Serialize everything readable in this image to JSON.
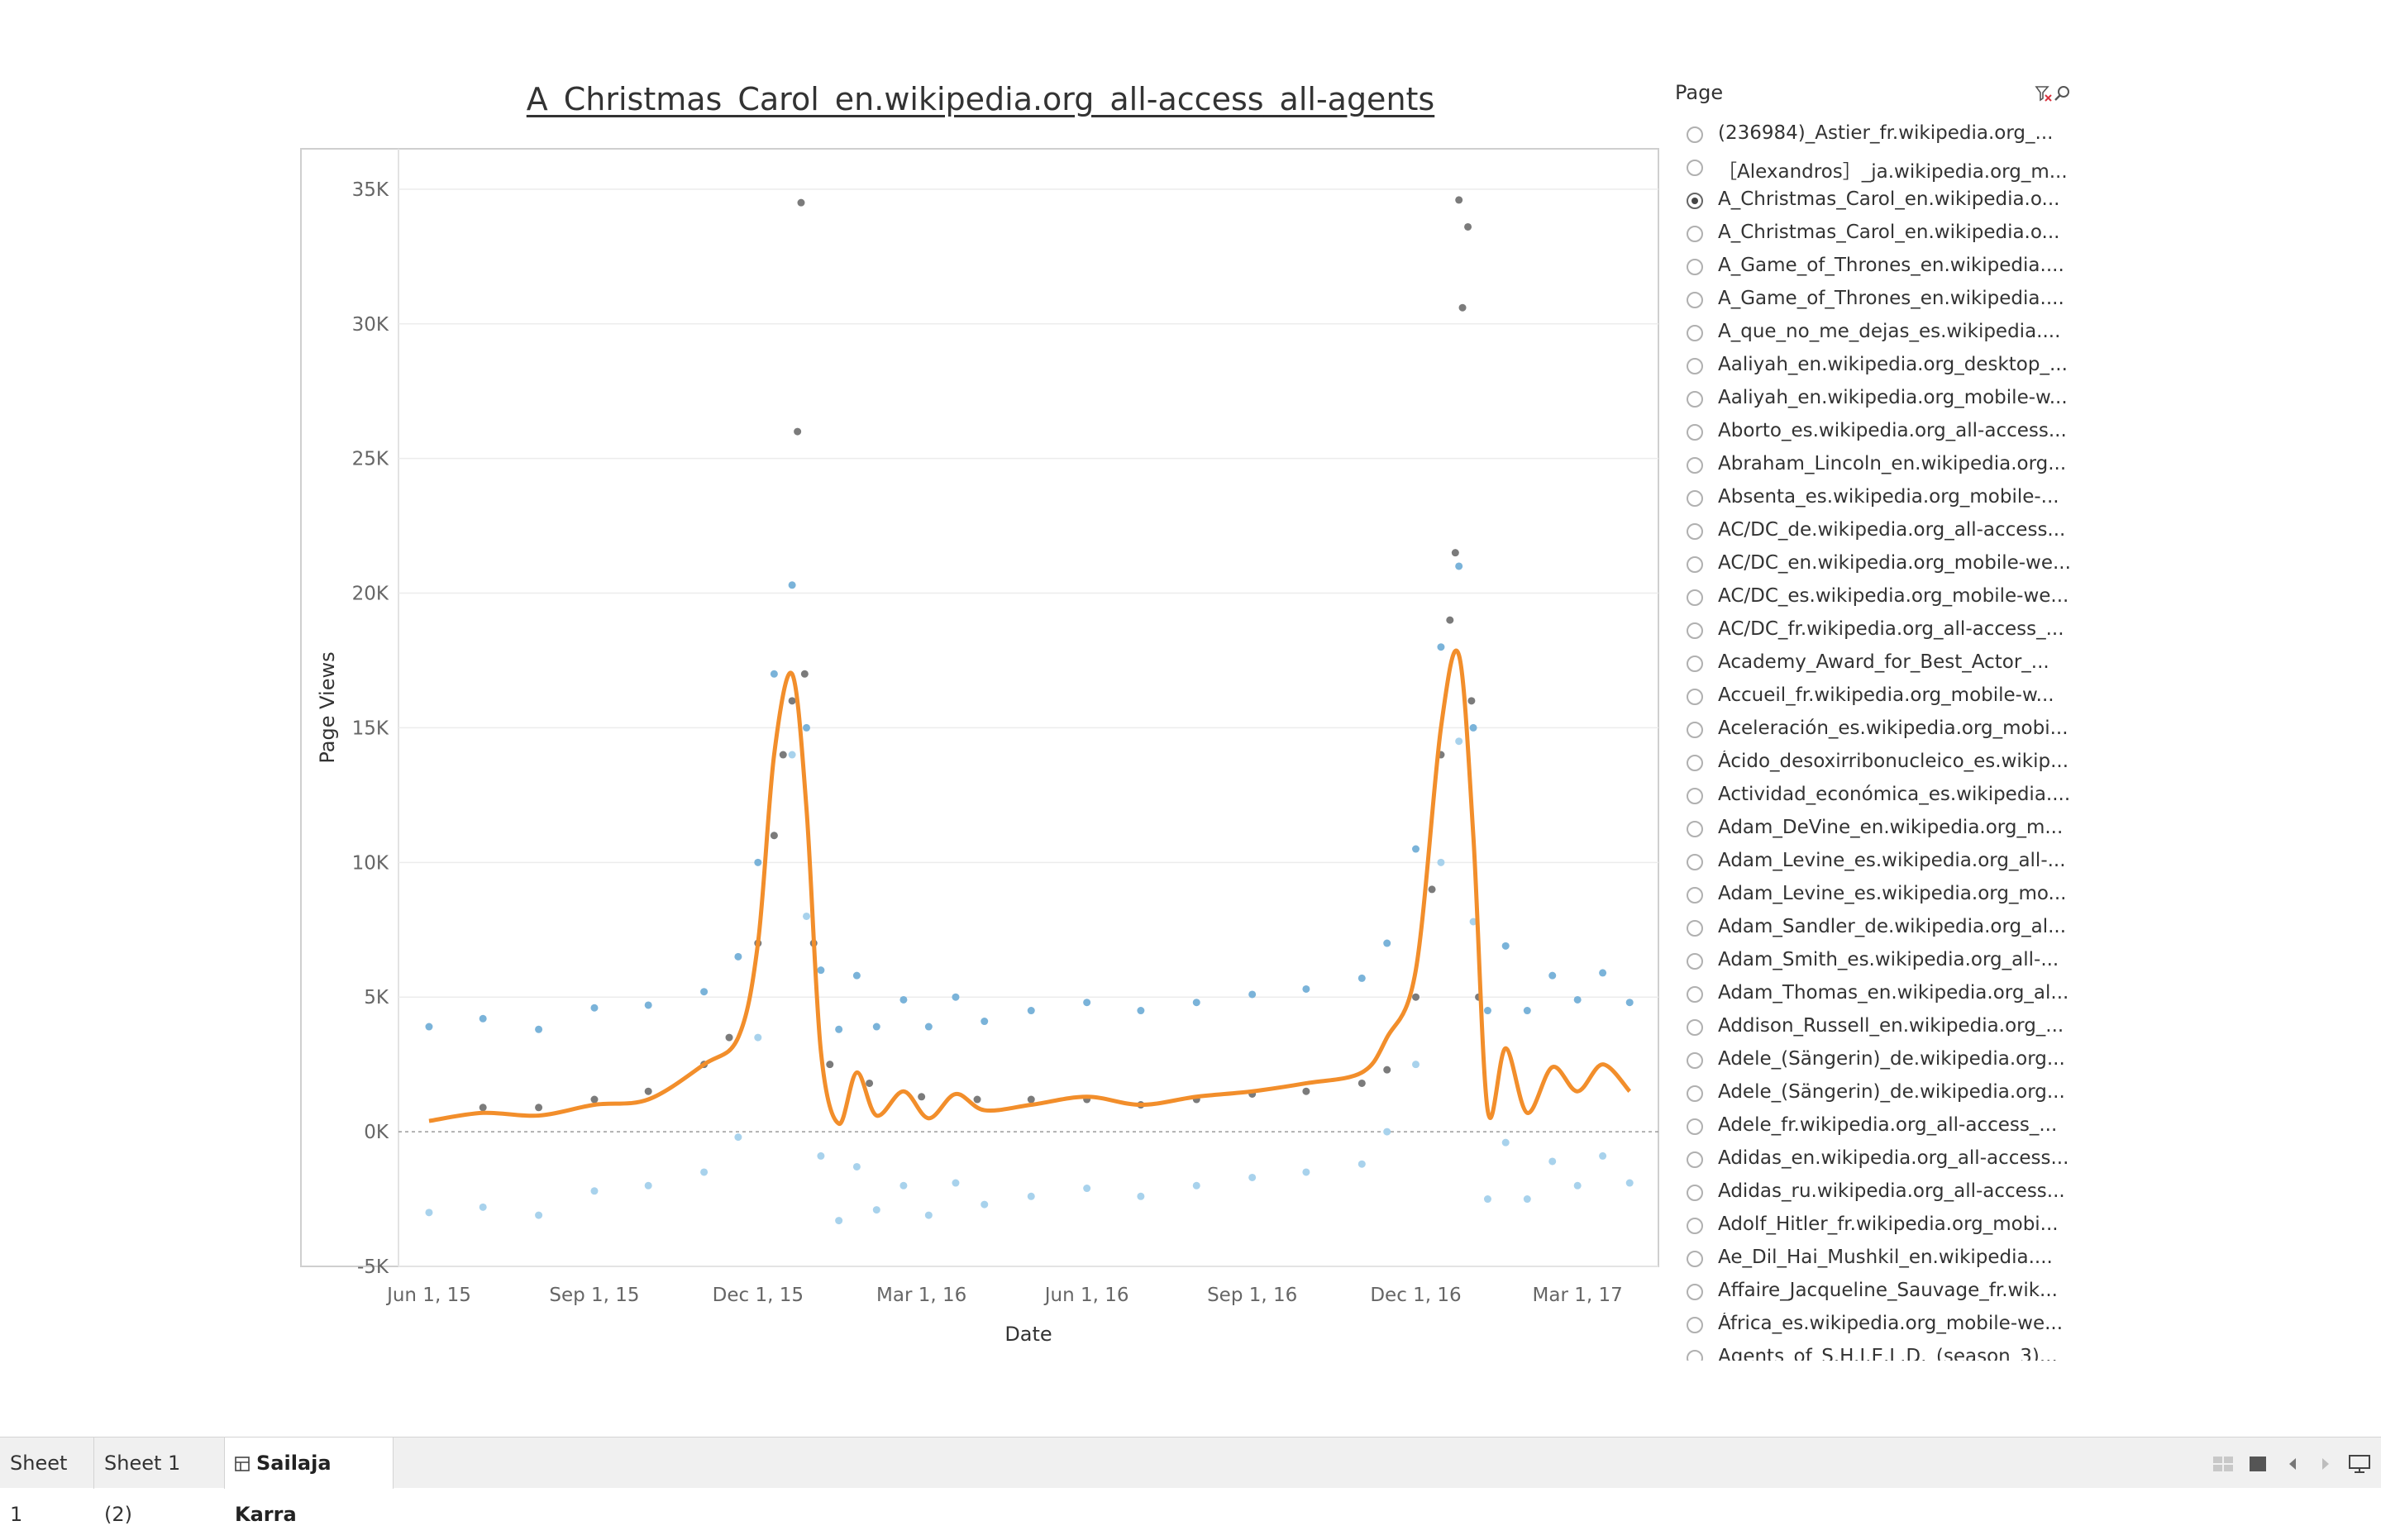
{
  "chart_data": {
    "type": "scatter",
    "title": "A_Christmas_Carol_en.wikipedia.org_all-access_all-agents",
    "xlabel": "Date",
    "ylabel": "Page Views",
    "x_tick_labels": [
      "Jun 1, 15",
      "Sep 1, 15",
      "Dec 1, 15",
      "Mar 1, 16",
      "Jun 1, 16",
      "Sep 1, 16",
      "Dec 1, 16",
      "Mar 1, 17"
    ],
    "x_tick_dates": [
      "2015-06-01",
      "2015-09-01",
      "2015-12-01",
      "2016-03-01",
      "2016-06-01",
      "2016-09-01",
      "2016-12-01",
      "2017-03-01"
    ],
    "xlim": [
      "2015-05-15",
      "2017-04-15"
    ],
    "ylim": [
      -5000,
      36500
    ],
    "y_ticks": [
      -5000,
      0,
      5000,
      10000,
      15000,
      20000,
      25000,
      30000,
      35000
    ],
    "y_tick_labels": [
      "-5K",
      "0K",
      "5K",
      "10K",
      "15K",
      "20K",
      "25K",
      "30K",
      "35K"
    ],
    "grid": true,
    "zero_reference_line": true,
    "colors": {
      "actual": "#7b7b7b",
      "forecast": "#f28e2b",
      "upper": "#7ab3d9",
      "lower": "#a8d2ec"
    },
    "series": [
      {
        "role": "actual",
        "style": "points",
        "x": [
          "2015-07-01",
          "2015-08-01",
          "2015-09-01",
          "2015-10-01",
          "2015-11-01",
          "2015-11-15",
          "2015-12-01",
          "2015-12-10",
          "2015-12-15",
          "2015-12-20",
          "2015-12-23",
          "2015-12-25",
          "2015-12-27",
          "2016-01-01",
          "2016-01-10",
          "2016-02-01",
          "2016-03-01",
          "2016-04-01",
          "2016-05-01",
          "2016-06-01",
          "2016-07-01",
          "2016-08-01",
          "2016-09-01",
          "2016-10-01",
          "2016-11-01",
          "2016-11-15",
          "2016-12-01",
          "2016-12-10",
          "2016-12-15",
          "2016-12-20",
          "2016-12-23",
          "2016-12-25",
          "2016-12-27",
          "2016-12-30",
          "2017-01-01",
          "2017-01-05"
        ],
        "y": [
          900,
          900,
          1200,
          1500,
          2500,
          3500,
          7000,
          11000,
          14000,
          16000,
          26000,
          34500,
          17000,
          7000,
          2500,
          1800,
          1300,
          1200,
          1200,
          1200,
          1000,
          1200,
          1400,
          1500,
          1800,
          2300,
          5000,
          9000,
          14000,
          19000,
          21500,
          34600,
          30600,
          33600,
          16000,
          5000
        ]
      },
      {
        "role": "forecast",
        "style": "line",
        "x": [
          "2015-06-01",
          "2015-07-01",
          "2015-08-01",
          "2015-09-01",
          "2015-10-01",
          "2015-11-01",
          "2015-11-20",
          "2015-12-01",
          "2015-12-10",
          "2015-12-20",
          "2015-12-28",
          "2016-01-05",
          "2016-01-15",
          "2016-01-25",
          "2016-02-05",
          "2016-02-20",
          "2016-03-05",
          "2016-03-20",
          "2016-04-05",
          "2016-05-01",
          "2016-06-01",
          "2016-07-01",
          "2016-08-01",
          "2016-09-01",
          "2016-10-01",
          "2016-11-01",
          "2016-11-15",
          "2016-12-01",
          "2016-12-15",
          "2016-12-25",
          "2017-01-02",
          "2017-01-10",
          "2017-01-20",
          "2017-02-01",
          "2017-02-15",
          "2017-03-01",
          "2017-03-15",
          "2017-03-30"
        ],
        "y": [
          400,
          700,
          600,
          1000,
          1200,
          2500,
          3500,
          7000,
          14000,
          17000,
          12000,
          3000,
          300,
          2200,
          600,
          1500,
          500,
          1400,
          800,
          1000,
          1300,
          1000,
          1300,
          1500,
          1800,
          2200,
          3500,
          6000,
          15000,
          17700,
          11000,
          800,
          3100,
          700,
          2400,
          1500,
          2500,
          1500
        ]
      },
      {
        "role": "upper",
        "style": "points",
        "x": [
          "2015-06-01",
          "2015-07-01",
          "2015-08-01",
          "2015-09-01",
          "2015-10-01",
          "2015-11-01",
          "2015-11-20",
          "2015-12-01",
          "2015-12-10",
          "2015-12-20",
          "2015-12-28",
          "2016-01-05",
          "2016-01-15",
          "2016-01-25",
          "2016-02-05",
          "2016-02-20",
          "2016-03-05",
          "2016-03-20",
          "2016-04-05",
          "2016-05-01",
          "2016-06-01",
          "2016-07-01",
          "2016-08-01",
          "2016-09-01",
          "2016-10-01",
          "2016-11-01",
          "2016-11-15",
          "2016-12-01",
          "2016-12-15",
          "2016-12-25",
          "2017-01-02",
          "2017-01-10",
          "2017-01-20",
          "2017-02-01",
          "2017-02-15",
          "2017-03-01",
          "2017-03-15",
          "2017-03-30"
        ],
        "y": [
          3900,
          4200,
          3800,
          4600,
          4700,
          5200,
          6500,
          10000,
          17000,
          20300,
          15000,
          6000,
          3800,
          5800,
          3900,
          4900,
          3900,
          5000,
          4100,
          4500,
          4800,
          4500,
          4800,
          5100,
          5300,
          5700,
          7000,
          10500,
          18000,
          21000,
          15000,
          4500,
          6900,
          4500,
          5800,
          4900,
          5900,
          4800
        ]
      },
      {
        "role": "lower",
        "style": "points",
        "x": [
          "2015-06-01",
          "2015-07-01",
          "2015-08-01",
          "2015-09-01",
          "2015-10-01",
          "2015-11-01",
          "2015-11-20",
          "2015-12-01",
          "2015-12-10",
          "2015-12-20",
          "2015-12-28",
          "2016-01-05",
          "2016-01-15",
          "2016-01-25",
          "2016-02-05",
          "2016-02-20",
          "2016-03-05",
          "2016-03-20",
          "2016-04-05",
          "2016-05-01",
          "2016-06-01",
          "2016-07-01",
          "2016-08-01",
          "2016-09-01",
          "2016-10-01",
          "2016-11-01",
          "2016-11-15",
          "2016-12-01",
          "2016-12-15",
          "2016-12-25",
          "2017-01-02",
          "2017-01-10",
          "2017-01-20",
          "2017-02-01",
          "2017-02-15",
          "2017-03-01",
          "2017-03-15",
          "2017-03-30"
        ],
        "y": [
          -3000,
          -2800,
          -3100,
          -2200,
          -2000,
          -1500,
          -200,
          3500,
          11000,
          14000,
          8000,
          -900,
          -3300,
          -1300,
          -2900,
          -2000,
          -3100,
          -1900,
          -2700,
          -2400,
          -2100,
          -2400,
          -2000,
          -1700,
          -1500,
          -1200,
          0,
          2500,
          10000,
          14500,
          7800,
          -2500,
          -400,
          -2500,
          -1100,
          -2000,
          -900,
          -1900
        ]
      }
    ]
  },
  "filter": {
    "title": "Page",
    "clear_icon": "clear-filter-icon",
    "search_icon": "search-icon",
    "selected_index": 2,
    "items": [
      "(236984)_Astier_fr.wikipedia.org_...",
      "［Alexandros］_ja.wikipedia.org_m...",
      "A_Christmas_Carol_en.wikipedia.o...",
      "A_Christmas_Carol_en.wikipedia.o...",
      "A_Game_of_Thrones_en.wikipedia....",
      "A_Game_of_Thrones_en.wikipedia....",
      "A_que_no_me_dejas_es.wikipedia....",
      "Aaliyah_en.wikipedia.org_desktop_...",
      "Aaliyah_en.wikipedia.org_mobile-w...",
      "Aborto_es.wikipedia.org_all-access...",
      "Abraham_Lincoln_en.wikipedia.org...",
      "Absenta_es.wikipedia.org_mobile-...",
      "AC/DC_de.wikipedia.org_all-access...",
      "AC/DC_en.wikipedia.org_mobile-we...",
      "AC/DC_es.wikipedia.org_mobile-we...",
      "AC/DC_fr.wikipedia.org_all-access_...",
      "Academy_Award_for_Best_Actor_...",
      "Accueil_fr.wikipedia.org_mobile-w...",
      "Aceleración_es.wikipedia.org_mobi...",
      "Ácido_desoxirribonucleico_es.wikip...",
      "Actividad_económica_es.wikipedia....",
      "Adam_DeVine_en.wikipedia.org_m...",
      "Adam_Levine_es.wikipedia.org_all-...",
      "Adam_Levine_es.wikipedia.org_mo...",
      "Adam_Sandler_de.wikipedia.org_al...",
      "Adam_Smith_es.wikipedia.org_all-...",
      "Adam_Thomas_en.wikipedia.org_al...",
      "Addison_Russell_en.wikipedia.org_...",
      "Adele_(Sängerin)_de.wikipedia.org...",
      "Adele_(Sängerin)_de.wikipedia.org...",
      "Adele_fr.wikipedia.org_all-access_...",
      "Adidas_en.wikipedia.org_all-access...",
      "Adidas_ru.wikipedia.org_all-access...",
      "Adolf_Hitler_fr.wikipedia.org_mobi...",
      "Ae_Dil_Hai_Mushkil_en.wikipedia....",
      "Affaire_Jacqueline_Sauvage_fr.wik...",
      "África_es.wikipedia.org_mobile-we...",
      "Agents_of_S.H.I.E.L.D._(season_3)..."
    ]
  },
  "tabs": [
    {
      "label": "Sheet 1",
      "active": false
    },
    {
      "label": "Sheet 1 (2)",
      "active": false
    },
    {
      "label": "Sailaja Karra",
      "active": true,
      "icon": "dashboard-grid-icon"
    }
  ],
  "status_icons": [
    "grid-view-icon",
    "single-view-icon",
    "previous-icon",
    "next-icon",
    "presentation-mode-icon"
  ]
}
